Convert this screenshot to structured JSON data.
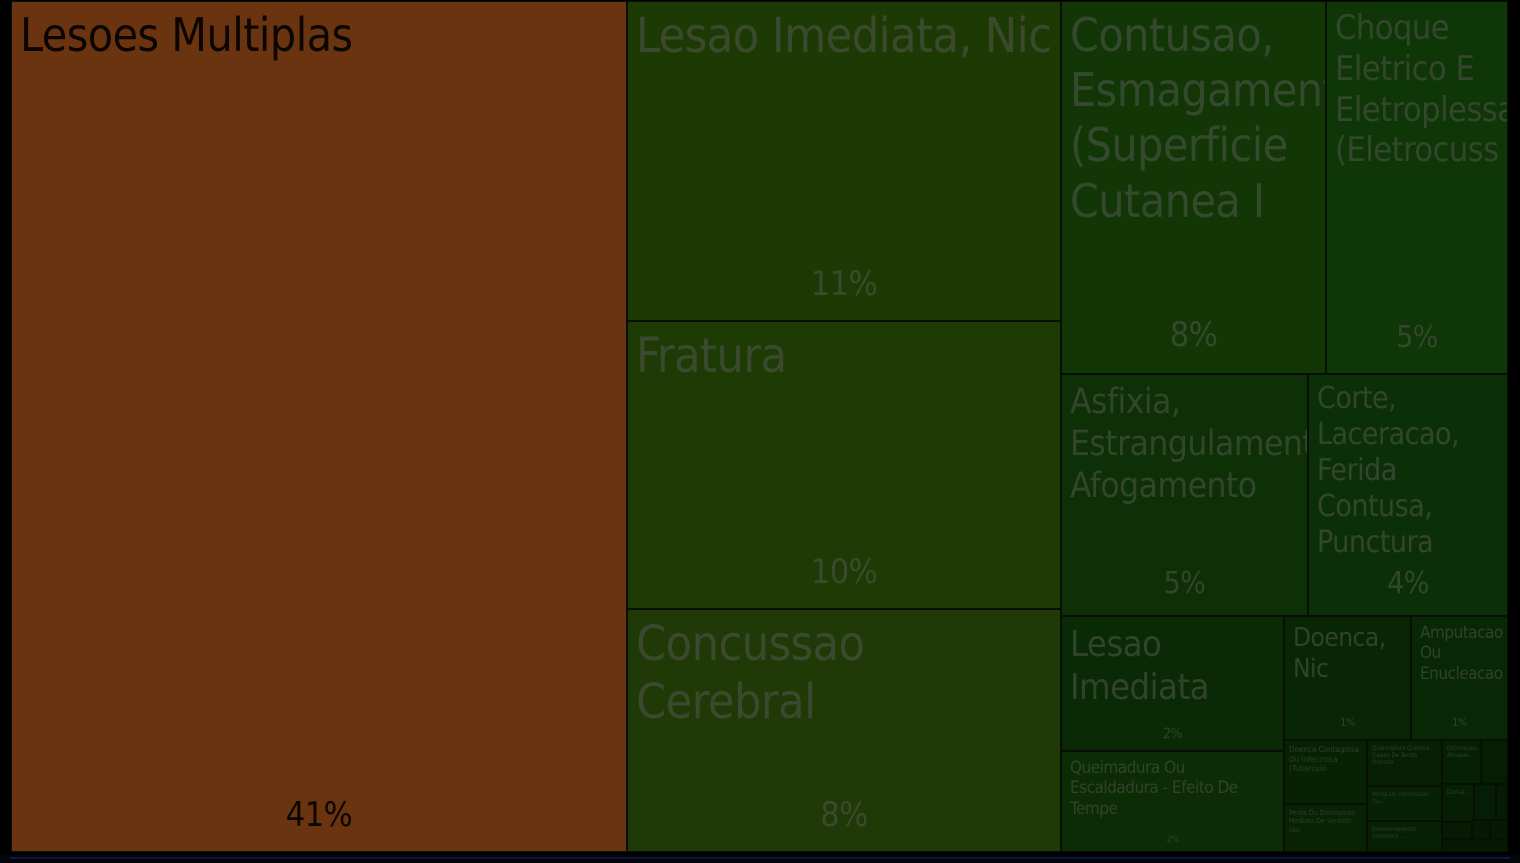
{
  "chart_data": {
    "type": "treemap",
    "items": [
      {
        "label": "Lesoes Multiplas",
        "pct": "41%",
        "value": 41,
        "color": "#6b3410",
        "text_color": "#0b0600"
      },
      {
        "label": "Lesao Imediata, Nic",
        "pct": "11%",
        "value": 11,
        "color": "#1e3a04",
        "text_color": "#3b4a2e"
      },
      {
        "label": "Fratura",
        "pct": "10%",
        "value": 10,
        "color": "#1e3a05",
        "text_color": "#3b4a2e"
      },
      {
        "label": "Concussao Cerebral",
        "pct": "8%",
        "value": 8,
        "color": "#1f3907",
        "text_color": "#3b4a2e"
      },
      {
        "label": "Contusao, Esmagamento (Superficie Cutanea I",
        "pct": "8%",
        "value": 8,
        "color": "#123606",
        "text_color": "#35492f"
      },
      {
        "label": "Choque Eletrico E Eletroplessao (Eletrocuss",
        "pct": "5%",
        "value": 5,
        "color": "#0f3607",
        "text_color": "#34472e"
      },
      {
        "label": "Asfixia, Estrangulamento, Afogamento",
        "pct": "5%",
        "value": 5,
        "color": "#0d3006",
        "text_color": "#33462d"
      },
      {
        "label": "Corte, Laceracao, Ferida Contusa, Punctura",
        "pct": "4%",
        "value": 4,
        "color": "#0b3007",
        "text_color": "#33462d"
      },
      {
        "label": "Lesao Imediata",
        "pct": "2%",
        "value": 2,
        "color": "#0a2a05",
        "text_color": "#31432c"
      },
      {
        "label": "Queimadura Ou Escaldadura - Efeito De Tempe",
        "pct": "2%",
        "value": 2,
        "color": "#0b2c05",
        "text_color": "#31432c"
      },
      {
        "label": "Doenca, Nic",
        "pct": "1%",
        "value": 1,
        "color": "#082604",
        "text_color": "#30422b"
      },
      {
        "label": "Amputacao Ou Enucleacao",
        "pct": "1%",
        "value": 1,
        "color": "#082704",
        "text_color": "#30422b"
      },
      {
        "label": "Doenca Contagiosa Ou Infecciosa (Tuberculo",
        "pct": "",
        "value": 0.5,
        "color": "#072203",
        "text_color": "#2e3f2a"
      },
      {
        "label": "Perda Ou Diminuicao Mediata De Sentido (Au",
        "pct": "",
        "value": 0.4,
        "color": "#072303",
        "text_color": "#2e3f2a"
      },
      {
        "label": "Queimadura Quimica (Lesao De Tecido Provoca",
        "pct": "",
        "value": 0.3,
        "color": "#072003",
        "text_color": "#2e3f2a"
      },
      {
        "label": "Perda Ou Diminuicao Ou...",
        "pct": "",
        "value": 0.25,
        "color": "#062103",
        "text_color": "#2e3f2a"
      },
      {
        "label": "Envenenamento Sistemico ...",
        "pct": "",
        "value": 0.2,
        "color": "#062003",
        "text_color": "#2e3f2a"
      },
      {
        "label": "Escoriacao, Abrasao...",
        "pct": "",
        "value": 0.15,
        "color": "#062003",
        "text_color": "#2e3f2a"
      },
      {
        "label": "Dorsal...",
        "pct": "",
        "value": 0.12,
        "color": "#061f03",
        "text_color": "#2e3f2a"
      },
      {
        "label": "",
        "pct": "",
        "value": 0.1,
        "color": "#051d02",
        "text_color": "#2e3f2a"
      },
      {
        "label": "",
        "pct": "",
        "value": 0.08,
        "color": "#051d02",
        "text_color": "#2e3f2a"
      },
      {
        "label": "",
        "pct": "",
        "value": 0.07,
        "color": "#051c02",
        "text_color": "#2e3f2a"
      },
      {
        "label": "",
        "pct": "",
        "value": 0.06,
        "color": "#051c02",
        "text_color": "#2e3f2a"
      },
      {
        "label": "",
        "pct": "",
        "value": 0.05,
        "color": "#041b02",
        "text_color": "#2e3f2a"
      },
      {
        "label": "",
        "pct": "",
        "value": 0.04,
        "color": "#041b02",
        "text_color": "#2e3f2a"
      },
      {
        "label": "",
        "pct": "",
        "value": 0.03,
        "color": "#041a02",
        "text_color": "#2e3f2a"
      }
    ]
  }
}
